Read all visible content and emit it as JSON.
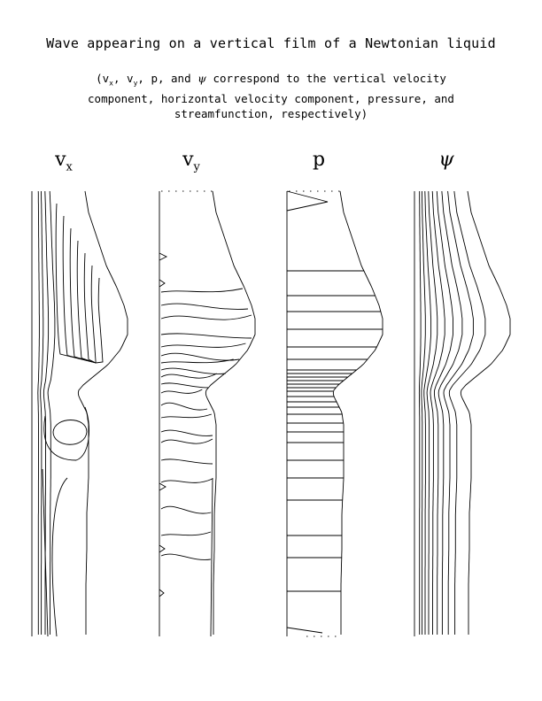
{
  "title": "Wave appearing on a vertical film of a Newtonian liquid",
  "subtitle": {
    "open": "(v",
    "sub_x": "x",
    "sep1": ", v",
    "sub_y": "y",
    "mid": ", p, and ",
    "psi_symbol": "ψ",
    "line1_end": " correspond to the vertical velocity",
    "line2": "component, horizontal velocity component, pressure, and",
    "line3": "streamfunction, respectively)"
  },
  "panels": {
    "vx": {
      "base": "v",
      "sub": "x"
    },
    "vy": {
      "base": "v",
      "sub": "y"
    },
    "p": {
      "base": "p"
    },
    "psi": {
      "base": "ψ"
    }
  }
}
